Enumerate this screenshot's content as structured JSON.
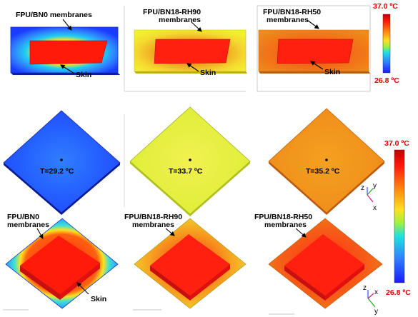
{
  "row1": {
    "panel1": {
      "label": "FPU/BN0 membranes",
      "skin": "Skin"
    },
    "panel2": {
      "label_line1": "FPU/BN18-RH90",
      "label_line2": "membranes",
      "skin": "Skin"
    },
    "panel3": {
      "label_line1": "FPU/BN18-RH50",
      "label_line2": "membranes",
      "skin": "Skin"
    },
    "colorbar": {
      "max": "37.0 ºC",
      "min": "26.8 ºC"
    }
  },
  "row2": {
    "t1": "T=29.2 ºC",
    "t2": "T=33.7 ºC",
    "t3": "T=35.2 ºC"
  },
  "row3": {
    "panel1": {
      "label_line1": "FPU/BN0",
      "label_line2": "membranes",
      "skin": "Skin"
    },
    "panel2": {
      "label_line1": "FPU/BN18-RH90",
      "label_line2": "membranes"
    },
    "panel3": {
      "label_line1": "FPU/BN18-RH50",
      "label_line2": "membranes"
    }
  },
  "colorbar_bottom": {
    "max": "37.0 ºC",
    "min": "26.8 ºC"
  },
  "axes": {
    "z": "z",
    "y": "y",
    "x": "x"
  },
  "colors": {
    "cold": "#1a3cff",
    "cool": "#2f7fff",
    "yellow": "#f2f230",
    "orange": "#f08a18",
    "red": "#ff1a0a",
    "label_red": "#e00000"
  }
}
